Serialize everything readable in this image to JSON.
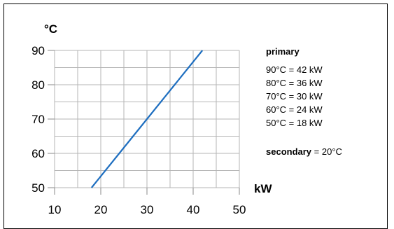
{
  "chart_data": {
    "type": "line",
    "y_unit_label": "°C",
    "x_unit_label": "kW",
    "xlim": [
      10,
      50
    ],
    "ylim": [
      50,
      90
    ],
    "x_ticks": [
      "10",
      "20",
      "30",
      "40",
      "50"
    ],
    "y_ticks": [
      "50",
      "60",
      "70",
      "80",
      "90"
    ],
    "grid": true,
    "line_color": "#1f6fc0",
    "series": [
      {
        "x": [
          18,
          24,
          30,
          36,
          42
        ],
        "y": [
          50,
          60,
          70,
          80,
          90
        ]
      }
    ]
  },
  "legend": {
    "title": "primary",
    "rows": [
      "90°C = 42 kW",
      "80°C = 36 kW",
      "70°C = 30 kW",
      "60°C = 24 kW",
      "50°C = 18 kW"
    ],
    "secondary_label": "secondary",
    "secondary_value": " = 20°C"
  }
}
